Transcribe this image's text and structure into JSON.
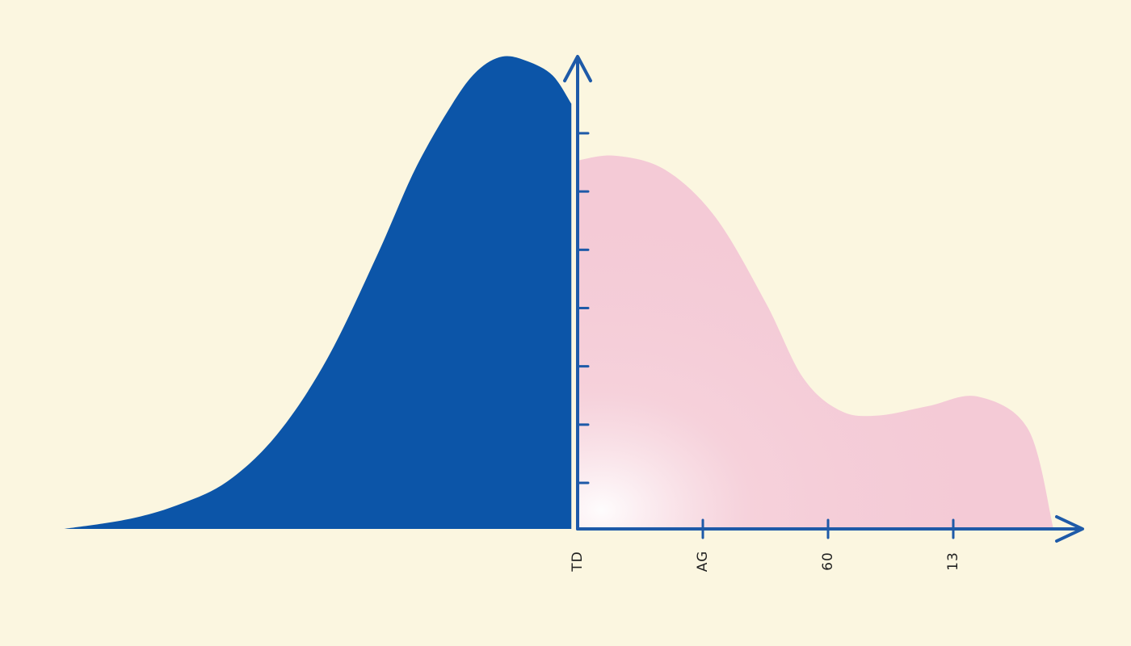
{
  "colors": {
    "background": "#fbf6e0",
    "axis": "#1e5aa8",
    "left_area": "#0c55a8",
    "right_area": "#f4cad6"
  },
  "chart_data": {
    "type": "area",
    "title": "",
    "xlabel": "",
    "ylabel": "",
    "grid": false,
    "legend": "none",
    "xlim": [
      -4.5,
      4.3
    ],
    "ylim": [
      0,
      1.0
    ],
    "x_ticks": [
      {
        "x": 0,
        "label": "TD"
      },
      {
        "x": 1,
        "label": "AG"
      },
      {
        "x": 2,
        "label": "60"
      },
      {
        "x": 3,
        "label": "13"
      }
    ],
    "y_tick_count": 7,
    "series": [
      {
        "color": "#0c55a8",
        "x": [
          -4.1,
          -3.6,
          -3.2,
          -2.8,
          -2.4,
          -2.0,
          -1.6,
          -1.3,
          -1.0,
          -0.8,
          -0.6,
          -0.4,
          -0.2,
          -0.05
        ],
        "y": [
          0.0,
          0.02,
          0.05,
          0.1,
          0.2,
          0.36,
          0.58,
          0.76,
          0.9,
          0.97,
          1.0,
          0.99,
          0.96,
          0.9
        ]
      },
      {
        "color": "#f4cad6",
        "x": [
          0.0,
          0.3,
          0.7,
          1.1,
          1.5,
          1.8,
          2.1,
          2.4,
          2.8,
          3.2,
          3.6,
          3.8
        ],
        "y": [
          0.78,
          0.79,
          0.76,
          0.66,
          0.48,
          0.32,
          0.25,
          0.24,
          0.26,
          0.28,
          0.21,
          0.0
        ]
      }
    ]
  }
}
